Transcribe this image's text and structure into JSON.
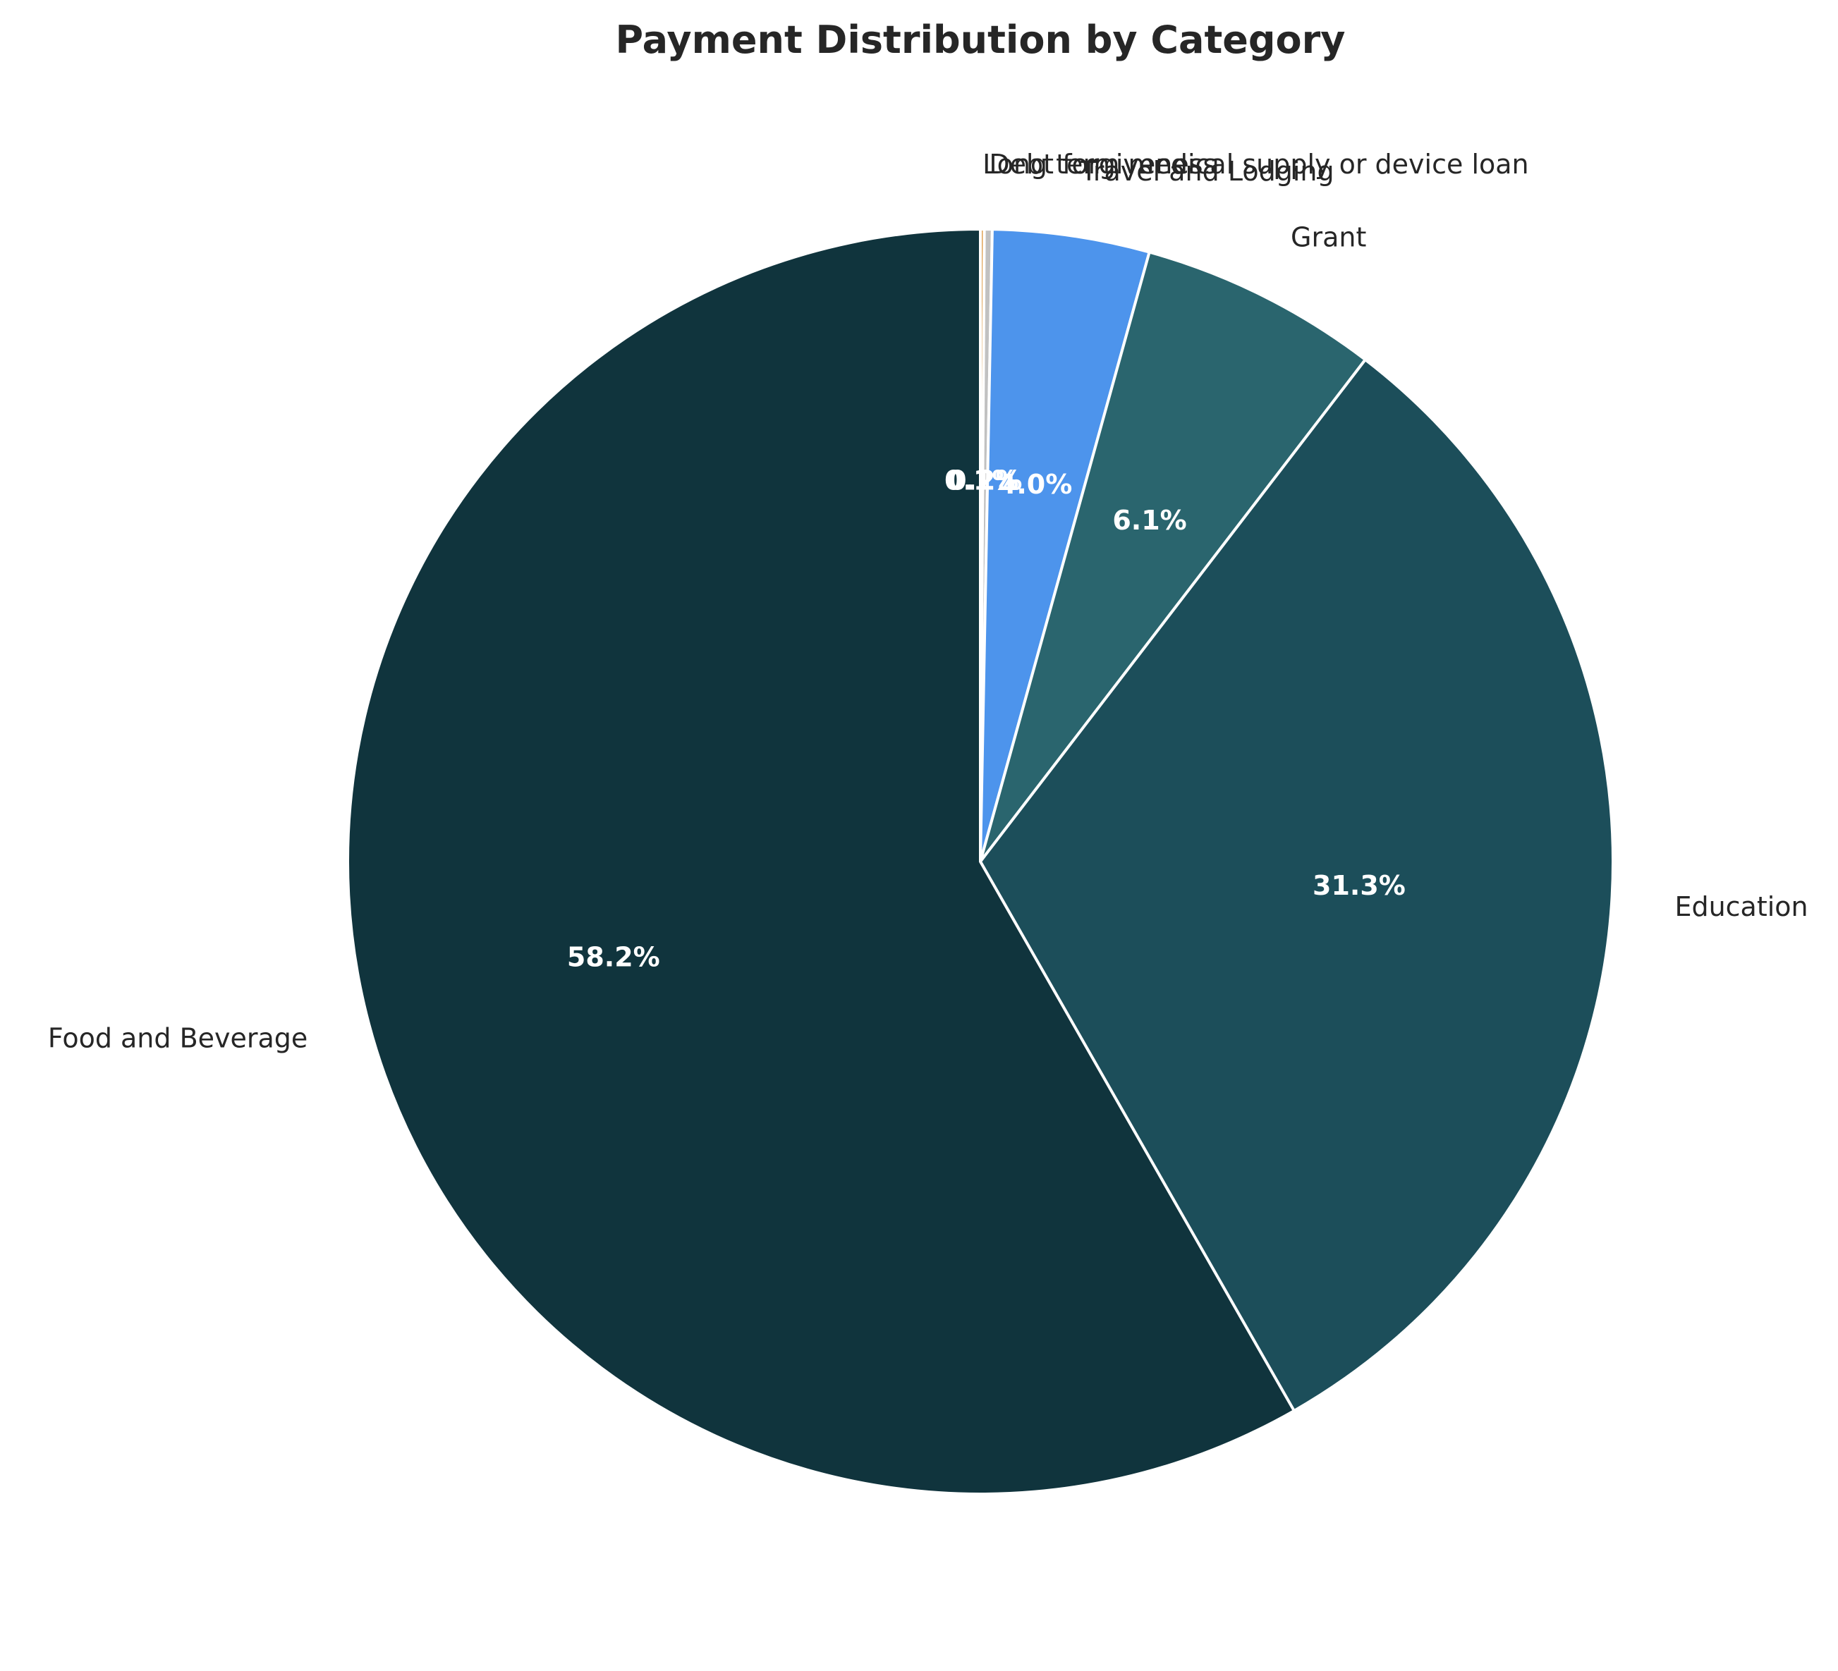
{
  "chart_data": {
    "type": "pie",
    "title": "Payment Distribution by Category",
    "start_angle_deg": 90,
    "direction": "clockwise",
    "slices": [
      {
        "label": "Long term medical supply or device loan",
        "value": 0.1,
        "display": "0.1%",
        "color": "#e0a458"
      },
      {
        "label": "Debt forgiveness",
        "value": 0.2,
        "display": "0.2%",
        "color": "#c1c1c1"
      },
      {
        "label": "Travel and Lodging",
        "value": 4.0,
        "display": "4.0%",
        "color": "#4d94ec"
      },
      {
        "label": "Grant",
        "value": 6.1,
        "display": "6.1%",
        "color": "#2a656e"
      },
      {
        "label": "Education",
        "value": 31.3,
        "display": "31.3%",
        "color": "#1c4e5a"
      },
      {
        "label": "Food and Beverage",
        "value": 58.2,
        "display": "58.2%",
        "color": "#10343d"
      }
    ]
  }
}
